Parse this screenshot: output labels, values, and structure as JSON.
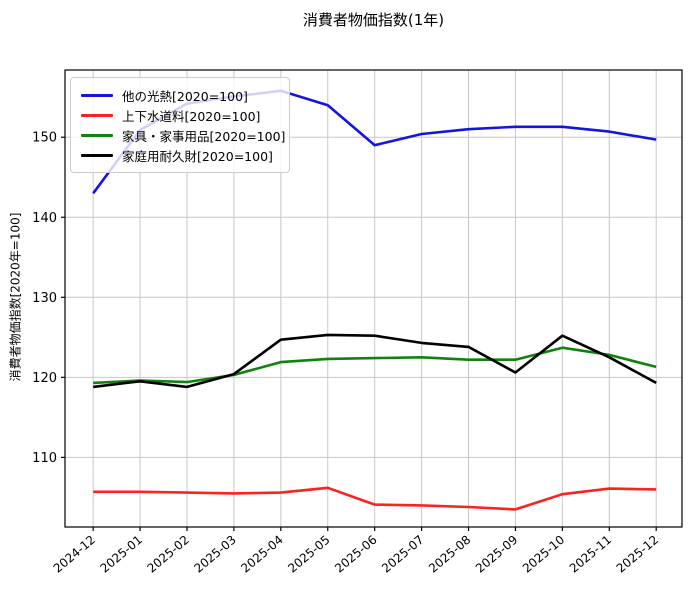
{
  "title": "消費者物価指数(1年)",
  "chart_data": {
    "type": "line",
    "title": "消費者物価指数(1年)",
    "xlabel": "",
    "ylabel": "消費者物価指数[2020年=100]",
    "categories": [
      "2024-12",
      "2025-01",
      "2025-02",
      "2025-03",
      "2025-04",
      "2025-05",
      "2025-06",
      "2025-07",
      "2025-08",
      "2025-09",
      "2025-10",
      "2025-11",
      "2025-12"
    ],
    "series": [
      {
        "name": "他の光熱[2020=100]",
        "color": "#1515dd",
        "values": [
          143.0,
          150.9,
          154.2,
          155.1,
          155.8,
          154.0,
          149.0,
          150.4,
          151.0,
          151.3,
          151.3,
          150.7,
          149.7
        ]
      },
      {
        "name": "上下水道料[2020=100]",
        "color": "#ff2020",
        "values": [
          105.7,
          105.7,
          105.6,
          105.5,
          105.6,
          106.2,
          104.1,
          104.0,
          103.8,
          103.5,
          105.4,
          106.1,
          106.0
        ]
      },
      {
        "name": "家具・家事用品[2020=100]",
        "color": "#0e840e",
        "values": [
          119.3,
          119.6,
          119.4,
          120.3,
          121.9,
          122.3,
          122.4,
          122.5,
          122.2,
          122.2,
          123.7,
          122.8,
          121.3
        ]
      },
      {
        "name": "家庭用耐久財[2020=100]",
        "color": "#000000",
        "values": [
          118.8,
          119.5,
          118.8,
          120.4,
          124.7,
          125.3,
          125.2,
          124.3,
          123.8,
          120.6,
          125.2,
          122.5,
          119.3
        ]
      }
    ],
    "yticks": [
      110,
      120,
      130,
      140,
      150
    ],
    "ylim": [
      101.3,
      158.4
    ],
    "xlim": [
      -0.6,
      12.55
    ],
    "grid": true,
    "legend_position": "upper left",
    "grid_color": "#c8c8c8",
    "spine_color": "#000000"
  }
}
